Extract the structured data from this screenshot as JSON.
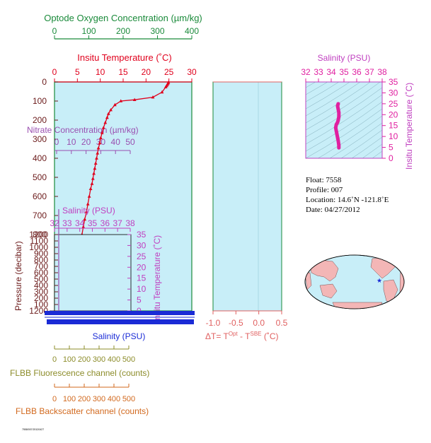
{
  "colors": {
    "oxygen": "#1a8a3a",
    "temperature": "#e0001c",
    "salinity_inset_purple": "#c040c0",
    "salinity_ts": "#e020a0",
    "salinity_axis": "#1a2bd6",
    "nitrate": "#9a4fb0",
    "fluorescence": "#8c8c2a",
    "backscatter": "#d2691e",
    "panel_fill": "#c8eef8",
    "delta_t": "#e06060",
    "land": "#f3b6b6"
  },
  "labels": {
    "oxygen_title": "Optode Oxygen Concentration (µm/kg)",
    "temp_title": "Insitu Temperature (˚C)",
    "pressure_title": "Pressure (decibar)",
    "nitrate_title": "Nitrate Concentration (µm/kg)",
    "inset_salinity_title": "Salinity (PSU)",
    "inset_temp_title": "Insitu Temperature (˚C)",
    "bottom_salinity_title": "Salinity (PSU)",
    "delta_title_pre": "ΔT= T",
    "delta_title_sup1": "Opt",
    "delta_title_mid": " - T",
    "delta_title_sup2": "SBE",
    "delta_title_post": " (˚C)",
    "ts_salinity_title": "Salinity (PSU)",
    "ts_temp_title": "Insitu Temperature (˚C)",
    "fluor_title": "FLBB Fluorescence channel (counts)",
    "backscatter_title": "FLBB Backscatter channel (counts)",
    "footer_code": "7558/007/20120427"
  },
  "float_info": {
    "float": "Float:  7558",
    "profile": "Profile:  007",
    "location": "Location:  14.6˚N  -121.8˚E",
    "date": "Date:  04/27/2012"
  },
  "axes": {
    "oxygen_ticks": [
      "0",
      "100",
      "200",
      "300",
      "400"
    ],
    "temp_ticks": [
      "0",
      "5",
      "10",
      "15",
      "20",
      "25",
      "30"
    ],
    "pressure_ticks": [
      "0",
      "100",
      "200",
      "300",
      "400",
      "500",
      "600",
      "700",
      "800"
    ],
    "inset_pressure_ticks": [
      "1200",
      "1100",
      "1000",
      "900",
      "800",
      "700",
      "600",
      "500",
      "400",
      "300",
      "200",
      "100",
      "1200"
    ],
    "nitrate_ticks": [
      "0",
      "10",
      "20",
      "30",
      "40",
      "50"
    ],
    "inset_sal_ticks": [
      "32",
      "33",
      "34",
      "35",
      "36",
      "37",
      "38"
    ],
    "inset_temp_ticks": [
      "35",
      "30",
      "25",
      "20",
      "15",
      "10",
      "5",
      "0"
    ],
    "delta_ticks": [
      "-1.0",
      "-0.5",
      "0.0",
      "0.5"
    ],
    "ts_sal_ticks": [
      "32",
      "33",
      "34",
      "35",
      "36",
      "37",
      "38"
    ],
    "ts_temp_ticks": [
      "35",
      "30",
      "25",
      "20",
      "15",
      "10",
      "5",
      "0"
    ],
    "fl_ticks": [
      "0",
      "100",
      "200",
      "300",
      "400",
      "500"
    ],
    "bs_ticks": [
      "0",
      "100",
      "200",
      "300",
      "400",
      "500"
    ]
  },
  "chart_data": [
    {
      "type": "line",
      "title": "Insitu Temperature (˚C)",
      "xlabel": "Insitu Temperature (˚C)",
      "ylabel": "Pressure (decibar)",
      "xlim": [
        0,
        30
      ],
      "ylim": [
        900,
        0
      ],
      "grid": false,
      "series": [
        {
          "name": "Insitu Temperature (˚C)",
          "x": [
            24.9,
            24.8,
            24.7,
            24.5,
            24.3,
            23.5,
            21.5,
            17.5,
            14.5,
            13.2,
            12.3,
            11.8,
            11.5,
            11.1,
            10.7,
            10.4,
            10.1,
            9.9,
            9.6,
            9.4,
            9.2,
            9.0,
            8.8,
            8.6,
            8.4,
            8.2,
            7.9,
            7.6,
            7.3,
            7.0,
            6.6,
            6.3,
            6.0,
            5.8,
            5.6,
            5.4,
            5.3,
            5.2,
            5.1,
            5.0,
            4.9,
            4.8
          ],
          "y": [
            2,
            5,
            10,
            15,
            20,
            40,
            60,
            70,
            75,
            90,
            110,
            125,
            140,
            160,
            180,
            200,
            220,
            240,
            260,
            280,
            300,
            320,
            340,
            360,
            380,
            400,
            420,
            450,
            480,
            510,
            540,
            570,
            600,
            620,
            650,
            680,
            700,
            720,
            740,
            760,
            780,
            795
          ]
        }
      ]
    },
    {
      "type": "line",
      "title": "Salinity (PSU)",
      "xlabel": "Salinity (PSU)",
      "ylabel": "Insitu Temperature (˚C)",
      "xlim": [
        32,
        38
      ],
      "ylim": [
        0,
        35
      ],
      "grid": false,
      "series": [
        {
          "name": "Salinity (PSU)",
          "x": [
            34.6,
            34.6,
            34.55,
            34.5,
            34.45,
            34.4,
            34.35,
            34.4,
            34.5,
            34.55,
            34.6,
            34.6,
            34.55,
            34.5,
            34.55
          ],
          "y": [
            4.8,
            6,
            8,
            9.5,
            11,
            12.5,
            14,
            15.5,
            16.5,
            17.5,
            19,
            21,
            22.5,
            24,
            25
          ]
        }
      ]
    }
  ]
}
